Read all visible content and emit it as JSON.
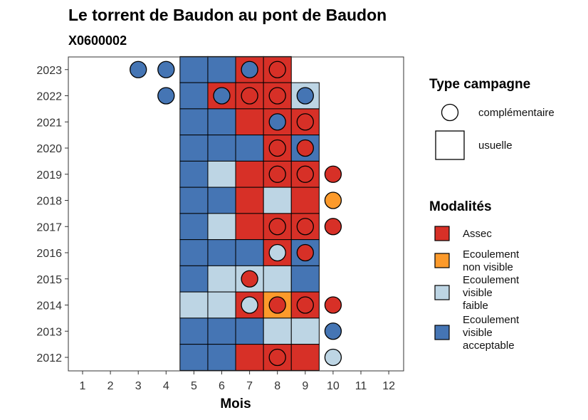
{
  "chart_data": {
    "type": "heatmap",
    "title": "Le torrent de Baudon au pont de Baudon",
    "subtitle": "X0600002",
    "xlabel": "Mois",
    "ylabel": "",
    "x_ticks": [
      1,
      2,
      3,
      4,
      5,
      6,
      7,
      8,
      9,
      10,
      11,
      12
    ],
    "y_ticks": [
      2012,
      2013,
      2014,
      2015,
      2016,
      2017,
      2018,
      2019,
      2020,
      2021,
      2022,
      2023
    ],
    "grid": false,
    "legend_position": "right",
    "modalities": [
      {
        "key": "assec",
        "label": "Assec",
        "color": "#d73027"
      },
      {
        "key": "nonvisible",
        "label": "Ecoulement\nnon visible",
        "color": "#fc9a2b"
      },
      {
        "key": "faible",
        "label": "Ecoulement\nvisible\nfaible",
        "color": "#bdd5e4"
      },
      {
        "key": "acceptable",
        "label": "Ecoulement\nvisible\nacceptable",
        "color": "#4575b4"
      }
    ],
    "campaign_types": [
      {
        "key": "complementaire",
        "label": "complémentaire",
        "shape": "circle"
      },
      {
        "key": "usuelle",
        "label": "usuelle",
        "shape": "square"
      }
    ],
    "usuelle": [
      {
        "year": 2023,
        "month": 5,
        "mod": "acceptable"
      },
      {
        "year": 2023,
        "month": 6,
        "mod": "acceptable"
      },
      {
        "year": 2023,
        "month": 7,
        "mod": "assec"
      },
      {
        "year": 2023,
        "month": 8,
        "mod": "assec"
      },
      {
        "year": 2022,
        "month": 5,
        "mod": "acceptable"
      },
      {
        "year": 2022,
        "month": 6,
        "mod": "assec"
      },
      {
        "year": 2022,
        "month": 7,
        "mod": "assec"
      },
      {
        "year": 2022,
        "month": 8,
        "mod": "assec"
      },
      {
        "year": 2022,
        "month": 9,
        "mod": "faible"
      },
      {
        "year": 2021,
        "month": 5,
        "mod": "acceptable"
      },
      {
        "year": 2021,
        "month": 6,
        "mod": "acceptable"
      },
      {
        "year": 2021,
        "month": 7,
        "mod": "assec"
      },
      {
        "year": 2021,
        "month": 8,
        "mod": "assec"
      },
      {
        "year": 2021,
        "month": 9,
        "mod": "assec"
      },
      {
        "year": 2020,
        "month": 5,
        "mod": "acceptable"
      },
      {
        "year": 2020,
        "month": 6,
        "mod": "acceptable"
      },
      {
        "year": 2020,
        "month": 7,
        "mod": "acceptable"
      },
      {
        "year": 2020,
        "month": 8,
        "mod": "assec"
      },
      {
        "year": 2020,
        "month": 9,
        "mod": "acceptable"
      },
      {
        "year": 2019,
        "month": 5,
        "mod": "acceptable"
      },
      {
        "year": 2019,
        "month": 6,
        "mod": "faible"
      },
      {
        "year": 2019,
        "month": 7,
        "mod": "assec"
      },
      {
        "year": 2019,
        "month": 8,
        "mod": "assec"
      },
      {
        "year": 2019,
        "month": 9,
        "mod": "assec"
      },
      {
        "year": 2018,
        "month": 5,
        "mod": "acceptable"
      },
      {
        "year": 2018,
        "month": 6,
        "mod": "acceptable"
      },
      {
        "year": 2018,
        "month": 7,
        "mod": "assec"
      },
      {
        "year": 2018,
        "month": 8,
        "mod": "faible"
      },
      {
        "year": 2018,
        "month": 9,
        "mod": "assec"
      },
      {
        "year": 2017,
        "month": 5,
        "mod": "acceptable"
      },
      {
        "year": 2017,
        "month": 6,
        "mod": "faible"
      },
      {
        "year": 2017,
        "month": 7,
        "mod": "assec"
      },
      {
        "year": 2017,
        "month": 8,
        "mod": "assec"
      },
      {
        "year": 2017,
        "month": 9,
        "mod": "assec"
      },
      {
        "year": 2016,
        "month": 5,
        "mod": "acceptable"
      },
      {
        "year": 2016,
        "month": 6,
        "mod": "acceptable"
      },
      {
        "year": 2016,
        "month": 7,
        "mod": "acceptable"
      },
      {
        "year": 2016,
        "month": 8,
        "mod": "assec"
      },
      {
        "year": 2016,
        "month": 9,
        "mod": "acceptable"
      },
      {
        "year": 2015,
        "month": 5,
        "mod": "acceptable"
      },
      {
        "year": 2015,
        "month": 6,
        "mod": "faible"
      },
      {
        "year": 2015,
        "month": 7,
        "mod": "faible"
      },
      {
        "year": 2015,
        "month": 8,
        "mod": "faible"
      },
      {
        "year": 2015,
        "month": 9,
        "mod": "acceptable"
      },
      {
        "year": 2014,
        "month": 5,
        "mod": "faible"
      },
      {
        "year": 2014,
        "month": 6,
        "mod": "faible"
      },
      {
        "year": 2014,
        "month": 7,
        "mod": "assec"
      },
      {
        "year": 2014,
        "month": 8,
        "mod": "nonvisible"
      },
      {
        "year": 2014,
        "month": 9,
        "mod": "assec"
      },
      {
        "year": 2013,
        "month": 5,
        "mod": "acceptable"
      },
      {
        "year": 2013,
        "month": 6,
        "mod": "acceptable"
      },
      {
        "year": 2013,
        "month": 7,
        "mod": "acceptable"
      },
      {
        "year": 2013,
        "month": 8,
        "mod": "faible"
      },
      {
        "year": 2013,
        "month": 9,
        "mod": "faible"
      },
      {
        "year": 2012,
        "month": 5,
        "mod": "acceptable"
      },
      {
        "year": 2012,
        "month": 6,
        "mod": "acceptable"
      },
      {
        "year": 2012,
        "month": 7,
        "mod": "assec"
      },
      {
        "year": 2012,
        "month": 8,
        "mod": "assec"
      },
      {
        "year": 2012,
        "month": 9,
        "mod": "assec"
      }
    ],
    "complementaire": [
      {
        "year": 2023,
        "month": 3,
        "mod": "acceptable"
      },
      {
        "year": 2023,
        "month": 4,
        "mod": "acceptable"
      },
      {
        "year": 2023,
        "month": 7,
        "mod": "acceptable"
      },
      {
        "year": 2023,
        "month": 8,
        "mod": "assec"
      },
      {
        "year": 2022,
        "month": 4,
        "mod": "acceptable"
      },
      {
        "year": 2022,
        "month": 6,
        "mod": "acceptable"
      },
      {
        "year": 2022,
        "month": 7,
        "mod": "assec"
      },
      {
        "year": 2022,
        "month": 8,
        "mod": "assec"
      },
      {
        "year": 2022,
        "month": 9,
        "mod": "acceptable"
      },
      {
        "year": 2021,
        "month": 8,
        "mod": "acceptable"
      },
      {
        "year": 2021,
        "month": 9,
        "mod": "assec"
      },
      {
        "year": 2020,
        "month": 8,
        "mod": "assec"
      },
      {
        "year": 2020,
        "month": 9,
        "mod": "assec"
      },
      {
        "year": 2019,
        "month": 8,
        "mod": "assec"
      },
      {
        "year": 2019,
        "month": 9,
        "mod": "assec"
      },
      {
        "year": 2019,
        "month": 10,
        "mod": "assec"
      },
      {
        "year": 2018,
        "month": 10,
        "mod": "nonvisible"
      },
      {
        "year": 2017,
        "month": 8,
        "mod": "assec"
      },
      {
        "year": 2017,
        "month": 9,
        "mod": "assec"
      },
      {
        "year": 2017,
        "month": 10,
        "mod": "assec"
      },
      {
        "year": 2016,
        "month": 8,
        "mod": "faible"
      },
      {
        "year": 2016,
        "month": 9,
        "mod": "assec"
      },
      {
        "year": 2015,
        "month": 7,
        "mod": "assec"
      },
      {
        "year": 2014,
        "month": 7,
        "mod": "faible"
      },
      {
        "year": 2014,
        "month": 8,
        "mod": "assec"
      },
      {
        "year": 2014,
        "month": 9,
        "mod": "assec"
      },
      {
        "year": 2014,
        "month": 10,
        "mod": "assec"
      },
      {
        "year": 2013,
        "month": 10,
        "mod": "acceptable"
      },
      {
        "year": 2012,
        "month": 8,
        "mod": "assec"
      },
      {
        "year": 2012,
        "month": 10,
        "mod": "faible"
      }
    ],
    "legend_titles": {
      "campaign": "Type campagne",
      "modality": "Modalités"
    }
  }
}
